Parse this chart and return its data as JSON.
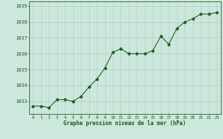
{
  "x": [
    0,
    1,
    2,
    3,
    4,
    5,
    6,
    7,
    8,
    9,
    10,
    11,
    12,
    13,
    14,
    15,
    16,
    17,
    18,
    19,
    20,
    21,
    22,
    23
  ],
  "y": [
    1032.7,
    1032.7,
    1032.6,
    1033.1,
    1033.1,
    1033.0,
    1033.3,
    1033.9,
    1034.4,
    1035.1,
    1036.1,
    1036.3,
    1036.0,
    1036.0,
    1036.0,
    1036.2,
    1037.1,
    1036.6,
    1037.6,
    1038.0,
    1038.2,
    1038.5,
    1038.5,
    1038.6
  ],
  "line_color": "#1a5c1a",
  "marker_color": "#1a5c1a",
  "bg_color": "#cce8dc",
  "grid_color": "#aacfbf",
  "xlabel": "Graphe pression niveau de la mer (hPa)",
  "xlabel_color": "#1a5c1a",
  "tick_color": "#1a5c1a",
  "ylim_min": 1032.2,
  "ylim_max": 1039.3,
  "yticks": [
    1033,
    1034,
    1035,
    1036,
    1037,
    1038,
    1039
  ],
  "xticks": [
    0,
    1,
    2,
    3,
    4,
    5,
    6,
    7,
    8,
    9,
    10,
    11,
    12,
    13,
    14,
    15,
    16,
    17,
    18,
    19,
    20,
    21,
    22,
    23
  ],
  "marker_size": 2.5,
  "line_width": 0.8
}
